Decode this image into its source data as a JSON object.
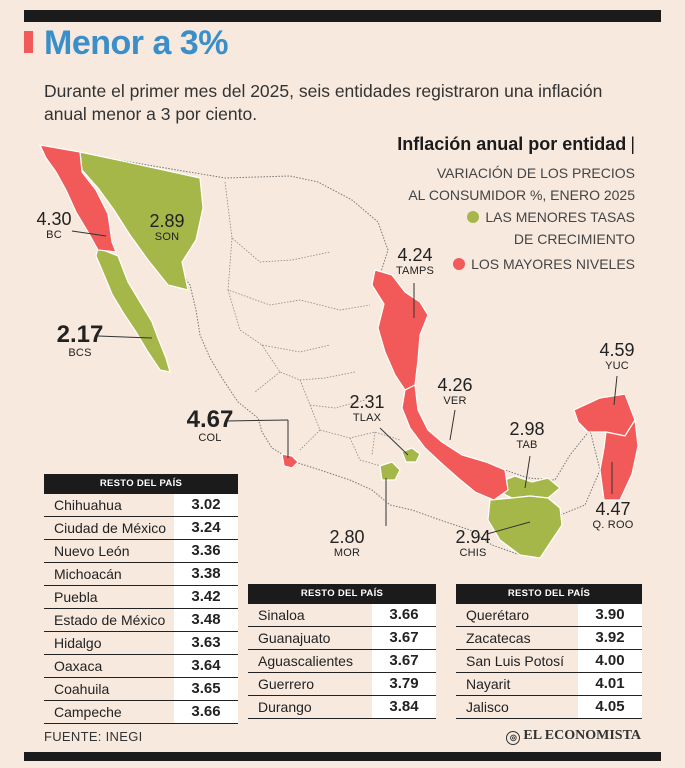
{
  "header": {
    "title": "Menor a 3%",
    "subtitle": "Durante el primer mes del 2025, seis entidades registraron una inflación anual menor a 3 por ciento."
  },
  "legend": {
    "title": "Inflación anual por entidad",
    "pipe": "|",
    "subtitle_line1": "VARIACIÓN DE LOS PRECIOS",
    "subtitle_line2": "AL CONSUMIDOR %, ENERO 2025",
    "low_line1": "LAS MENORES TASAS",
    "low_line2": "DE CRECIMIENTO",
    "high": "LOS MAYORES NIVELES"
  },
  "colors": {
    "low": "#a6b74a",
    "high": "#f25a5a",
    "title": "#3a8ec9",
    "background": "#f7e9de"
  },
  "map_labels": {
    "bc": {
      "value": "4.30",
      "state": "BC"
    },
    "son": {
      "value": "2.89",
      "state": "SON"
    },
    "bcs": {
      "value": "2.17",
      "state": "BCS"
    },
    "col": {
      "value": "4.67",
      "state": "COL"
    },
    "tamps": {
      "value": "4.24",
      "state": "TAMPS"
    },
    "tlax": {
      "value": "2.31",
      "state": "TLAX"
    },
    "ver": {
      "value": "4.26",
      "state": "VER"
    },
    "tab": {
      "value": "2.98",
      "state": "TAB"
    },
    "yuc": {
      "value": "4.59",
      "state": "YUC"
    },
    "qroo": {
      "value": "4.47",
      "state": "Q. ROO"
    },
    "mor": {
      "value": "2.80",
      "state": "MOR"
    },
    "chis": {
      "value": "2.94",
      "state": "CHIS"
    }
  },
  "tables": [
    {
      "header": "RESTO DEL PAÍS",
      "rows": [
        {
          "name": "Chihuahua",
          "value": "3.02"
        },
        {
          "name": "Ciudad de México",
          "value": "3.24"
        },
        {
          "name": "Nuevo León",
          "value": "3.36"
        },
        {
          "name": "Michoacán",
          "value": "3.38"
        },
        {
          "name": "Puebla",
          "value": "3.42"
        },
        {
          "name": "Estado de México",
          "value": "3.48"
        },
        {
          "name": " Hidalgo",
          "value": "3.63"
        },
        {
          "name": "Oaxaca",
          "value": "3.64"
        },
        {
          "name": "Coahuila",
          "value": "3.65"
        },
        {
          "name": "Campeche",
          "value": "3.66"
        }
      ]
    },
    {
      "header": "RESTO DEL PAÍS",
      "rows": [
        {
          "name": "Sinaloa",
          "value": "3.66"
        },
        {
          "name": "Guanajuato",
          "value": "3.67"
        },
        {
          "name": "Aguascalientes",
          "value": "3.67"
        },
        {
          "name": "Guerrero",
          "value": "3.79"
        },
        {
          "name": "Durango",
          "value": "3.84"
        }
      ]
    },
    {
      "header": "RESTO DEL PAÍS",
      "rows": [
        {
          "name": "Querétaro",
          "value": "3.90"
        },
        {
          "name": "Zacatecas",
          "value": "3.92"
        },
        {
          "name": "San Luis Potosí",
          "value": "4.00"
        },
        {
          "name": "Nayarit",
          "value": "4.01"
        },
        {
          "name": "Jalisco",
          "value": "4.05"
        }
      ]
    }
  ],
  "footer": {
    "source": "FUENTE: INEGI",
    "brand": "EL ECONOMISTA"
  }
}
